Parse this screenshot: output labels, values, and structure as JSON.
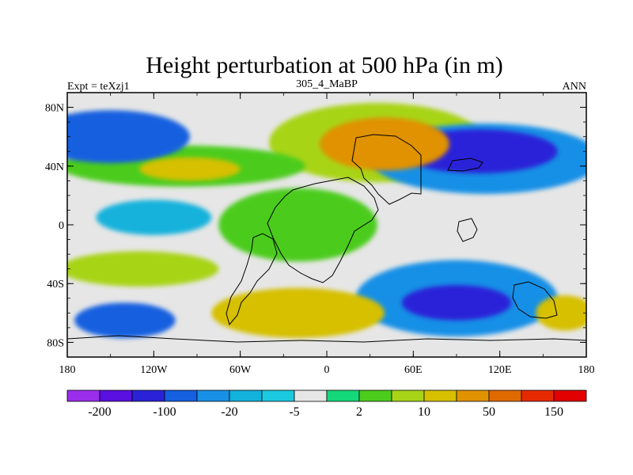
{
  "chart_data": {
    "type": "heatmap",
    "title": "Height perturbation at 500 hPa (in m)",
    "left_label": "Expt = teXzj1",
    "center_label": "305_4_MaBP",
    "right_label": "ANN",
    "x_ticks": [
      "180",
      "120W",
      "60W",
      "0",
      "60E",
      "120E",
      "180"
    ],
    "x_tick_values": [
      -180,
      -120,
      -60,
      0,
      60,
      120,
      180
    ],
    "y_ticks": [
      "80N",
      "40N",
      "0",
      "40S",
      "80S"
    ],
    "y_tick_values": [
      80,
      40,
      0,
      -40,
      -80
    ],
    "xlim": [
      -180,
      180
    ],
    "ylim": [
      -90,
      90
    ],
    "colorbar_labels": [
      "-200",
      "-100",
      "-20",
      "-5",
      "2",
      "10",
      "50",
      "150"
    ],
    "colorbar_colors": [
      "#9a2eea",
      "#5a10e0",
      "#2a22d8",
      "#1460e0",
      "#1890e6",
      "#12b2dc",
      "#1ccae0",
      "#e6e6e6",
      "#14d87a",
      "#4ccc1c",
      "#a8d418",
      "#d6c000",
      "#e09200",
      "#e06a00",
      "#e62a00",
      "#e20000"
    ],
    "fields": [
      {
        "name": "nh-pos-center",
        "lon": 40,
        "lat": 55,
        "rx": 45,
        "ry": 18,
        "level": 12
      },
      {
        "name": "nh-pos-ring",
        "lon": 35,
        "lat": 56,
        "rx": 75,
        "ry": 27,
        "level": 10
      },
      {
        "name": "na-pos",
        "lon": -95,
        "lat": 38,
        "rx": 35,
        "ry": 8,
        "level": 11
      },
      {
        "name": "na-pos-band",
        "lon": -100,
        "lat": 40,
        "rx": 85,
        "ry": 14,
        "level": 9
      },
      {
        "name": "pac-neg",
        "lon": -150,
        "lat": 60,
        "rx": 55,
        "ry": 18,
        "level": 3
      },
      {
        "name": "asia-neg",
        "lon": 105,
        "lat": 50,
        "rx": 55,
        "ry": 15,
        "level": 2
      },
      {
        "name": "asia-neg-ring",
        "lon": 110,
        "lat": 45,
        "rx": 80,
        "ry": 24,
        "level": 4
      },
      {
        "name": "trop-pac-neg",
        "lon": -120,
        "lat": 5,
        "rx": 40,
        "ry": 12,
        "level": 5
      },
      {
        "name": "trop-pos",
        "lon": -20,
        "lat": 0,
        "rx": 55,
        "ry": 25,
        "level": 9
      },
      {
        "name": "sh-neg-center",
        "lon": 90,
        "lat": -53,
        "rx": 38,
        "ry": 12,
        "level": 2
      },
      {
        "name": "sh-neg-ring",
        "lon": 90,
        "lat": -50,
        "rx": 70,
        "ry": 26,
        "level": 4
      },
      {
        "name": "sh-pos-atl",
        "lon": -20,
        "lat": -60,
        "rx": 60,
        "ry": 17,
        "level": 11
      },
      {
        "name": "sh-pos-pac",
        "lon": -130,
        "lat": -30,
        "rx": 55,
        "ry": 12,
        "level": 10
      },
      {
        "name": "sh-neg-pac",
        "lon": -140,
        "lat": -65,
        "rx": 35,
        "ry": 12,
        "level": 3
      },
      {
        "name": "sh-pos-east",
        "lon": 165,
        "lat": -60,
        "rx": 20,
        "ry": 12,
        "level": 11
      }
    ]
  }
}
